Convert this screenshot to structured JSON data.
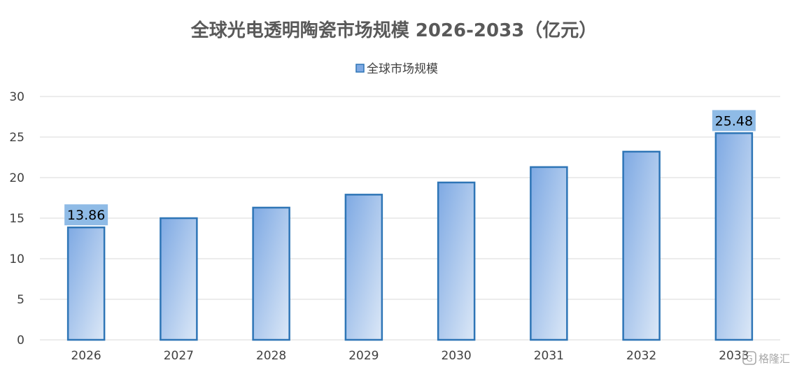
{
  "chart_data": {
    "type": "bar",
    "title": "全球光电透明陶瓷市场规模 2026-2033（亿元）",
    "categories": [
      "2026",
      "2027",
      "2028",
      "2029",
      "2030",
      "2031",
      "2032",
      "2033"
    ],
    "series": [
      {
        "name": "全球市场规模",
        "values": [
          13.86,
          15.0,
          16.3,
          17.9,
          19.4,
          21.3,
          23.2,
          25.48
        ]
      }
    ],
    "labeled_points": [
      {
        "index": 0,
        "label": "13.86"
      },
      {
        "index": 7,
        "label": "25.48"
      }
    ],
    "ylim": [
      0,
      30
    ],
    "yticks": [
      0,
      5,
      10,
      15,
      20,
      25,
      30
    ],
    "grid": true,
    "legend_position": "top-center",
    "colors": {
      "bar_fill_top": "#7ea9e3",
      "bar_fill_bottom": "#dce8f7",
      "bar_border": "#2e75b6",
      "label_box": "#8fbbe6",
      "grid": "#d9d9d9",
      "title": "#595959",
      "tick_text": "#404040"
    }
  },
  "watermark": {
    "icon": "gelonghui-logo-icon",
    "text": "格隆汇"
  }
}
